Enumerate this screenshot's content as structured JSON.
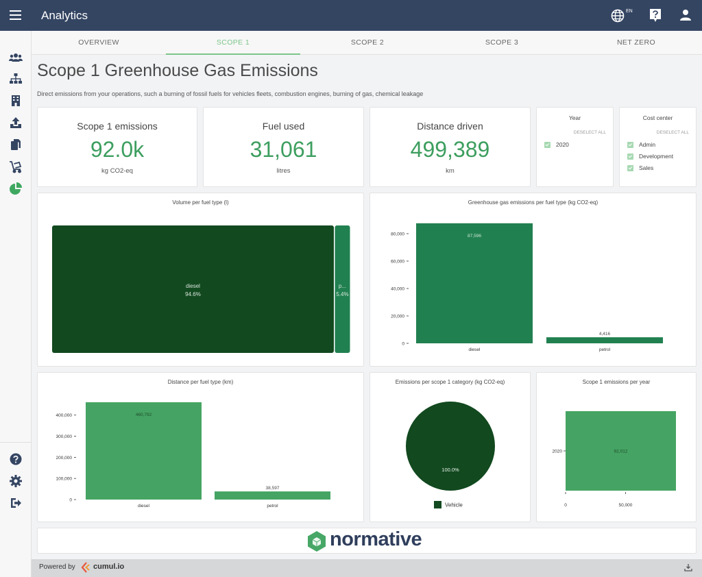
{
  "header": {
    "app_title": "Analytics",
    "language_code": "EN",
    "icons": [
      "menu-icon",
      "globe-icon",
      "help-icon",
      "user-icon"
    ]
  },
  "sidebar": {
    "items": [
      {
        "icon": "users-icon"
      },
      {
        "icon": "org-chart-icon"
      },
      {
        "icon": "building-icon"
      },
      {
        "icon": "upload-icon"
      },
      {
        "icon": "documents-icon"
      },
      {
        "icon": "cart-icon"
      },
      {
        "icon": "pie-chart-icon",
        "active": true
      },
      {
        "icon": "help-circle-icon"
      },
      {
        "icon": "gear-icon"
      },
      {
        "icon": "logout-icon"
      }
    ]
  },
  "tabs": [
    {
      "label": "OVERVIEW"
    },
    {
      "label": "SCOPE 1",
      "active": true
    },
    {
      "label": "SCOPE 2"
    },
    {
      "label": "SCOPE 3"
    },
    {
      "label": "NET ZERO"
    }
  ],
  "page": {
    "title": "Scope 1 Greenhouse Gas Emissions",
    "description": "Direct emissions from your operations, such a burning of fossil fuels for vehicles fleets, combustion engines, burning of gas, chemical leakage"
  },
  "kpis": [
    {
      "title": "Scope 1 emissions",
      "value": "92.0k",
      "unit": "kg CO2-eq"
    },
    {
      "title": "Fuel used",
      "value": "31,061",
      "unit": "litres"
    },
    {
      "title": "Distance driven",
      "value": "499,389",
      "unit": "km"
    }
  ],
  "filters": {
    "year": {
      "title": "Year",
      "deselect_label": "DESELECT ALL",
      "options": [
        "2020"
      ]
    },
    "cost_center": {
      "title": "Cost center",
      "deselect_label": "DESELECT ALL",
      "options": [
        "Admin",
        "Development",
        "Sales"
      ]
    }
  },
  "colors": {
    "topbar": "#344562",
    "accent_green": "#7cc58a",
    "kpi_green": "#3d9e5f",
    "dark_green": "#12491f",
    "mid_green": "#218050",
    "light_green": "#45a463"
  },
  "chart_data": [
    {
      "type": "treemap",
      "title": "Volume per fuel type (l)",
      "items": [
        {
          "label": "diesel",
          "share_label": "94.6%",
          "share": 0.946
        },
        {
          "label": "p...",
          "share_label": "5.4%",
          "share": 0.054
        }
      ]
    },
    {
      "type": "bar",
      "title": "Greenhouse gas emissions per fuel type (kg CO2-eq)",
      "categories": [
        "diesel",
        "petrol"
      ],
      "values": [
        87596,
        4416
      ],
      "value_labels": [
        "87,596",
        "4,416"
      ],
      "ylim": [
        0,
        88000
      ],
      "yticks": [
        0,
        20000,
        40000,
        60000,
        80000
      ],
      "ytick_labels": [
        "0",
        "20,000",
        "40,000",
        "60,000",
        "80,000"
      ]
    },
    {
      "type": "bar",
      "title": "Distance per fuel type (km)",
      "categories": [
        "diesel",
        "petrol"
      ],
      "values": [
        460792,
        38597
      ],
      "value_labels": [
        "460,792",
        "38,597"
      ],
      "ylim": [
        0,
        460792
      ],
      "yticks": [
        0,
        100000,
        200000,
        300000,
        400000
      ],
      "ytick_labels": [
        "0",
        "100,000",
        "200,000",
        "300,000",
        "400,000"
      ]
    },
    {
      "type": "pie",
      "title": "Emissions per scope 1 category (kg CO2-eq)",
      "slices": [
        {
          "label": "Vehicle",
          "share": 1.0,
          "share_label": "100.0%"
        }
      ]
    },
    {
      "type": "bar",
      "orientation": "horizontal",
      "title": "Scope 1 emissions per year",
      "categories": [
        "2020"
      ],
      "values": [
        92012
      ],
      "value_labels": [
        "92,012"
      ],
      "xlim": [
        0,
        92012
      ],
      "xticks": [
        0,
        50000
      ],
      "xtick_labels": [
        "0",
        "50,000"
      ]
    }
  ],
  "brand": {
    "name": "normative"
  },
  "footer": {
    "powered_by": "Powered by",
    "provider": "cumul.io"
  }
}
